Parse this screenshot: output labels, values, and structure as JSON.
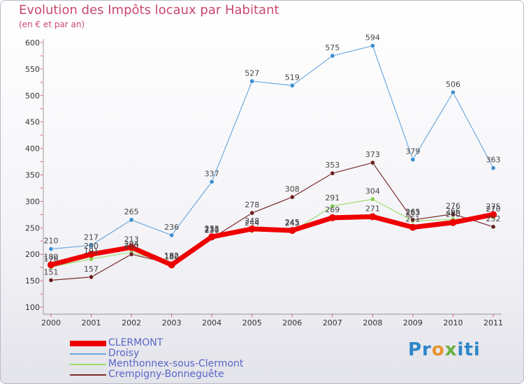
{
  "title": "Evolution des Impôts locaux par Habitant",
  "subtitle": "(en € et par an)",
  "logo_text": [
    "Pr",
    "o",
    "x",
    "iti"
  ],
  "colors": {
    "clermont": "#ee0000",
    "droisy": "#6fa8dc",
    "menthonnex": "#9fdc6f",
    "crempigny": "#7a2a2a",
    "title": "#c8486e",
    "axis": "#888888"
  },
  "chart_data": {
    "type": "line",
    "title": "Evolution des Impôts locaux par Habitant",
    "subtitle": "(en € et par an)",
    "xlabel": "",
    "ylabel": "",
    "x": [
      "2000",
      "2001",
      "2002",
      "2003",
      "2004",
      "2005",
      "2006",
      "2007",
      "2008",
      "2009",
      "2010",
      "2011"
    ],
    "ylim": [
      100,
      600
    ],
    "yticks": [
      100,
      150,
      200,
      250,
      300,
      350,
      400,
      450,
      500,
      550,
      600
    ],
    "grid": false,
    "legend_position": "bottom-left",
    "series": [
      {
        "name": "CLERMONT",
        "key": "clermont",
        "values": [
          180,
          200,
          213,
          180,
          233,
          248,
          245,
          269,
          271,
          251,
          260,
          275
        ],
        "labels": [
          "180",
          "200",
          "213",
          "180",
          "233",
          "248",
          "245",
          "269",
          "271",
          "251",
          "260",
          "275"
        ]
      },
      {
        "name": "Droisy",
        "key": "droisy",
        "values": [
          210,
          217,
          265,
          236,
          337,
          527,
          519,
          575,
          594,
          379,
          506,
          363
        ],
        "labels": [
          "210",
          "217",
          "265",
          "236",
          "337",
          "527",
          "519",
          "575",
          "594",
          "379",
          "506",
          "363"
        ]
      },
      {
        "name": "Menthonnex-sous-Clermont",
        "key": "menthonnex",
        "values": [
          176,
          191,
          204,
          182,
          231,
          244,
          243,
          291,
          304,
          263,
          266,
          270
        ],
        "labels": [
          "176",
          "191",
          "204",
          "182",
          "231",
          "244",
          "243",
          "291",
          "304",
          "263",
          "266",
          "270"
        ]
      },
      {
        "name": "Crempigny-Bonneguête",
        "key": "crempigny",
        "values": [
          151,
          157,
          200,
          182,
          230,
          278,
          308,
          353,
          373,
          265,
          276,
          252
        ],
        "labels": [
          "151",
          "157",
          "200",
          "182",
          "230",
          "278",
          "308",
          "353",
          "373",
          "265",
          "276",
          "252"
        ]
      }
    ]
  }
}
